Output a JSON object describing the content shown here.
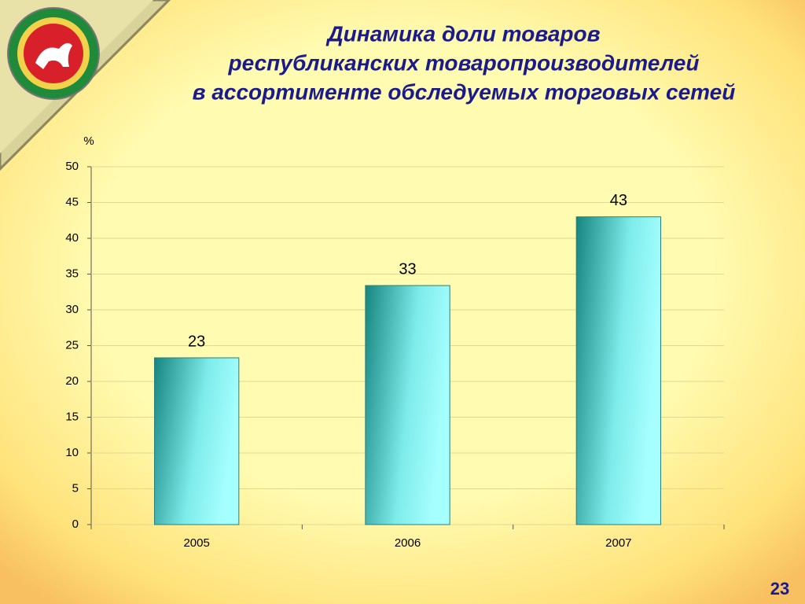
{
  "chart_data": {
    "type": "bar",
    "title": [
      "Динамика доли товаров",
      "республиканских товаропроизводителей",
      "в ассортименте обследуемых торговых сетей"
    ],
    "y_label": "%",
    "categories": [
      "2005",
      "2006",
      "2007"
    ],
    "values": [
      23.3,
      33.4,
      43
    ],
    "value_labels": [
      "23",
      "33",
      "43"
    ],
    "color": "#3fb8b4",
    "ylim": [
      0,
      50
    ],
    "yticks": [
      0,
      5,
      10,
      15,
      20,
      25,
      30,
      35,
      40,
      45,
      50
    ],
    "grid": true
  },
  "slide_number": "23"
}
